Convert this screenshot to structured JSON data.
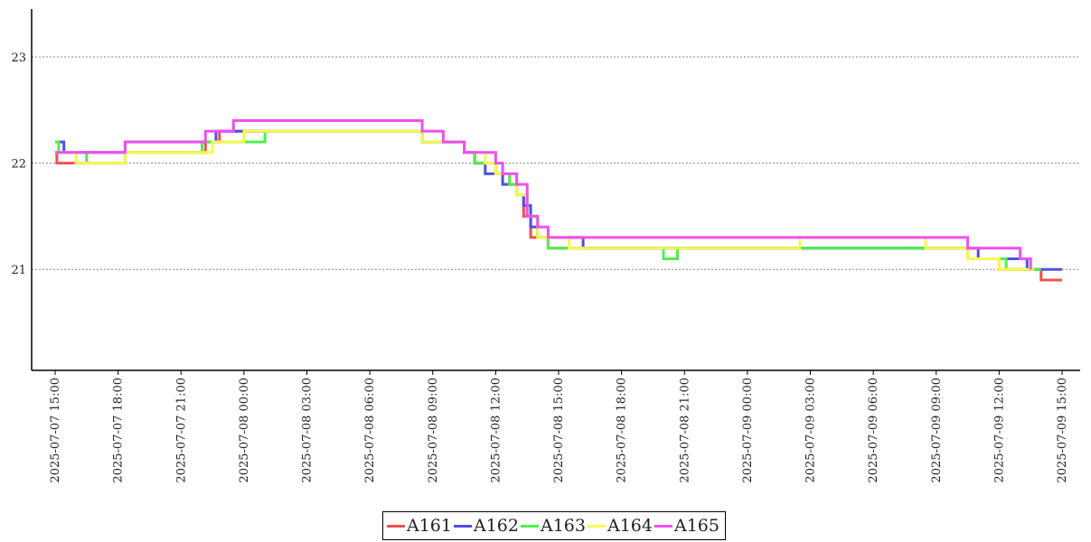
{
  "chart_data": {
    "type": "line",
    "title": "",
    "xlabel": "",
    "ylabel": "",
    "xlim": [
      "2025-07-07 15:00",
      "2025-07-09 15:30"
    ],
    "ylim": [
      20.05,
      23.45
    ],
    "yticks": [
      21,
      22,
      23
    ],
    "xticks": [
      "2025-07-07 15:00",
      "2025-07-07 18:00",
      "2025-07-07 21:00",
      "2025-07-08 00:00",
      "2025-07-08 03:00",
      "2025-07-08 06:00",
      "2025-07-08 09:00",
      "2025-07-08 12:00",
      "2025-07-08 15:00",
      "2025-07-08 18:00",
      "2025-07-08 21:00",
      "2025-07-09 00:00",
      "2025-07-09 03:00",
      "2025-07-09 06:00",
      "2025-07-09 09:00",
      "2025-07-09 12:00",
      "2025-07-09 15:00"
    ],
    "grid": "horizontal-dotted",
    "legend": "bottom-center",
    "step": true,
    "series": [
      {
        "name": "A161",
        "color": "#f05050",
        "points": [
          [
            "2025-07-07 15:00",
            22.1
          ],
          [
            "2025-07-07 15:05",
            22.0
          ],
          [
            "2025-07-07 18:20",
            22.1
          ],
          [
            "2025-07-07 22:10",
            22.2
          ],
          [
            "2025-07-07 22:50",
            22.3
          ],
          [
            "2025-07-08 08:30",
            22.2
          ],
          [
            "2025-07-08 10:30",
            22.1
          ],
          [
            "2025-07-08 11:00",
            22.0
          ],
          [
            "2025-07-08 12:00",
            21.9
          ],
          [
            "2025-07-08 12:40",
            21.8
          ],
          [
            "2025-07-08 13:00",
            21.7
          ],
          [
            "2025-07-08 13:20",
            21.5
          ],
          [
            "2025-07-08 13:40",
            21.3
          ],
          [
            "2025-07-08 14:00",
            21.3
          ],
          [
            "2025-07-08 14:30",
            21.2
          ],
          [
            "2025-07-09 10:30",
            21.1
          ],
          [
            "2025-07-09 12:00",
            21.0
          ],
          [
            "2025-07-09 14:00",
            20.9
          ],
          [
            "2025-07-09 15:00",
            20.9
          ]
        ]
      },
      {
        "name": "A162",
        "color": "#5050e0",
        "points": [
          [
            "2025-07-07 15:00",
            22.2
          ],
          [
            "2025-07-07 15:25",
            22.1
          ],
          [
            "2025-07-07 18:20",
            22.2
          ],
          [
            "2025-07-07 22:00",
            22.2
          ],
          [
            "2025-07-07 22:40",
            22.3
          ],
          [
            "2025-07-08 00:30",
            22.3
          ],
          [
            "2025-07-08 08:30",
            22.2
          ],
          [
            "2025-07-08 10:30",
            22.1
          ],
          [
            "2025-07-08 11:00",
            22.0
          ],
          [
            "2025-07-08 11:30",
            21.9
          ],
          [
            "2025-07-08 12:20",
            21.8
          ],
          [
            "2025-07-08 13:00",
            21.7
          ],
          [
            "2025-07-08 13:20",
            21.6
          ],
          [
            "2025-07-08 13:40",
            21.4
          ],
          [
            "2025-07-08 14:00",
            21.3
          ],
          [
            "2025-07-08 14:40",
            21.3
          ],
          [
            "2025-07-08 16:10",
            21.2
          ],
          [
            "2025-07-09 10:30",
            21.2
          ],
          [
            "2025-07-09 11:00",
            21.1
          ],
          [
            "2025-07-09 12:00",
            21.1
          ],
          [
            "2025-07-09 13:20",
            21.0
          ],
          [
            "2025-07-09 15:00",
            21.0
          ]
        ]
      },
      {
        "name": "A163",
        "color": "#50ee50",
        "points": [
          [
            "2025-07-07 15:00",
            22.2
          ],
          [
            "2025-07-07 15:10",
            22.1
          ],
          [
            "2025-07-07 16:30",
            22.0
          ],
          [
            "2025-07-07 18:20",
            22.1
          ],
          [
            "2025-07-07 22:00",
            22.2
          ],
          [
            "2025-07-07 22:30",
            22.2
          ],
          [
            "2025-07-08 00:30",
            22.2
          ],
          [
            "2025-07-08 01:00",
            22.3
          ],
          [
            "2025-07-08 08:30",
            22.2
          ],
          [
            "2025-07-08 10:30",
            22.1
          ],
          [
            "2025-07-08 11:00",
            22.0
          ],
          [
            "2025-07-08 12:00",
            21.9
          ],
          [
            "2025-07-08 12:40",
            21.8
          ],
          [
            "2025-07-08 13:00",
            21.7
          ],
          [
            "2025-07-08 13:30",
            21.5
          ],
          [
            "2025-07-08 14:00",
            21.3
          ],
          [
            "2025-07-08 14:30",
            21.2
          ],
          [
            "2025-07-08 20:00",
            21.1
          ],
          [
            "2025-07-08 20:40",
            21.2
          ],
          [
            "2025-07-09 10:30",
            21.1
          ],
          [
            "2025-07-09 11:30",
            21.1
          ],
          [
            "2025-07-09 12:20",
            21.0
          ],
          [
            "2025-07-09 14:00",
            21.0
          ]
        ]
      },
      {
        "name": "A164",
        "color": "#f8f850",
        "points": [
          [
            "2025-07-07 15:00",
            22.1
          ],
          [
            "2025-07-07 16:00",
            22.0
          ],
          [
            "2025-07-07 18:20",
            22.1
          ],
          [
            "2025-07-07 22:30",
            22.2
          ],
          [
            "2025-07-08 00:00",
            22.3
          ],
          [
            "2025-07-08 08:30",
            22.2
          ],
          [
            "2025-07-08 10:30",
            22.1
          ],
          [
            "2025-07-08 11:30",
            22.0
          ],
          [
            "2025-07-08 12:00",
            21.9
          ],
          [
            "2025-07-08 13:00",
            21.7
          ],
          [
            "2025-07-08 13:30",
            21.5
          ],
          [
            "2025-07-08 14:00",
            21.3
          ],
          [
            "2025-07-08 15:00",
            21.3
          ],
          [
            "2025-07-08 15:30",
            21.2
          ],
          [
            "2025-07-09 02:30",
            21.3
          ],
          [
            "2025-07-09 08:30",
            21.2
          ],
          [
            "2025-07-09 10:30",
            21.1
          ],
          [
            "2025-07-09 12:00",
            21.0
          ],
          [
            "2025-07-09 13:40",
            21.0
          ]
        ]
      },
      {
        "name": "A165",
        "color": "#f050f0",
        "points": [
          [
            "2025-07-07 15:00",
            22.1
          ],
          [
            "2025-07-07 18:20",
            22.2
          ],
          [
            "2025-07-07 21:00",
            22.2
          ],
          [
            "2025-07-07 22:10",
            22.3
          ],
          [
            "2025-07-07 23:30",
            22.4
          ],
          [
            "2025-07-08 08:30",
            22.3
          ],
          [
            "2025-07-08 09:30",
            22.2
          ],
          [
            "2025-07-08 10:30",
            22.1
          ],
          [
            "2025-07-08 12:00",
            22.0
          ],
          [
            "2025-07-08 12:20",
            21.9
          ],
          [
            "2025-07-08 13:00",
            21.8
          ],
          [
            "2025-07-08 13:30",
            21.5
          ],
          [
            "2025-07-08 14:00",
            21.4
          ],
          [
            "2025-07-08 14:30",
            21.3
          ],
          [
            "2025-07-08 17:30",
            21.3
          ],
          [
            "2025-07-08 21:00",
            21.3
          ],
          [
            "2025-07-09 10:30",
            21.2
          ],
          [
            "2025-07-09 12:00",
            21.2
          ],
          [
            "2025-07-09 13:00",
            21.1
          ],
          [
            "2025-07-09 13:30",
            21.0
          ]
        ]
      }
    ]
  }
}
